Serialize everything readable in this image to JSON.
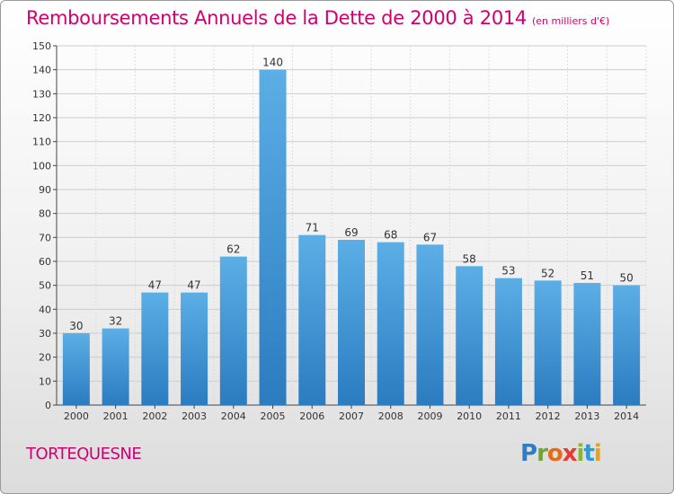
{
  "header": {
    "title": "Remboursements Annuels de la Dette de 2000 à 2014",
    "unit": "(en milliers d'€)"
  },
  "footer": {
    "commune": "TORTEQUESNE",
    "logo_letters": [
      {
        "char": "P",
        "color": "#2e7dc6"
      },
      {
        "char": "r",
        "color": "#6aa82e"
      },
      {
        "char": "o",
        "color": "#e46b17"
      },
      {
        "char": "x",
        "color": "#e63b2e"
      },
      {
        "char": "i",
        "color": "#8ab82a"
      },
      {
        "char": "t",
        "color": "#2e9bd6"
      },
      {
        "char": "i",
        "color": "#e6a317"
      }
    ]
  },
  "chart_data": {
    "type": "bar",
    "categories": [
      "2000",
      "2001",
      "2002",
      "2003",
      "2004",
      "2005",
      "2006",
      "2007",
      "2008",
      "2009",
      "2010",
      "2011",
      "2012",
      "2013",
      "2014"
    ],
    "values": [
      30,
      32,
      47,
      47,
      62,
      140,
      71,
      69,
      68,
      67,
      58,
      53,
      52,
      51,
      50
    ],
    "data_labels": [
      "30",
      "32",
      "47",
      "47",
      "62",
      "140",
      "71",
      "69",
      "68",
      "67",
      "58",
      "53",
      "52",
      "51",
      "50"
    ],
    "ylim": [
      0,
      150
    ],
    "yticks": [
      "0",
      "10",
      "20",
      "30",
      "40",
      "50",
      "60",
      "70",
      "80",
      "90",
      "100",
      "110",
      "120",
      "130",
      "140",
      "150"
    ],
    "grid": true,
    "bar_color_top": "#5caee6",
    "bar_color_bottom": "#2b7cc0",
    "title_color": "#d0006f"
  }
}
